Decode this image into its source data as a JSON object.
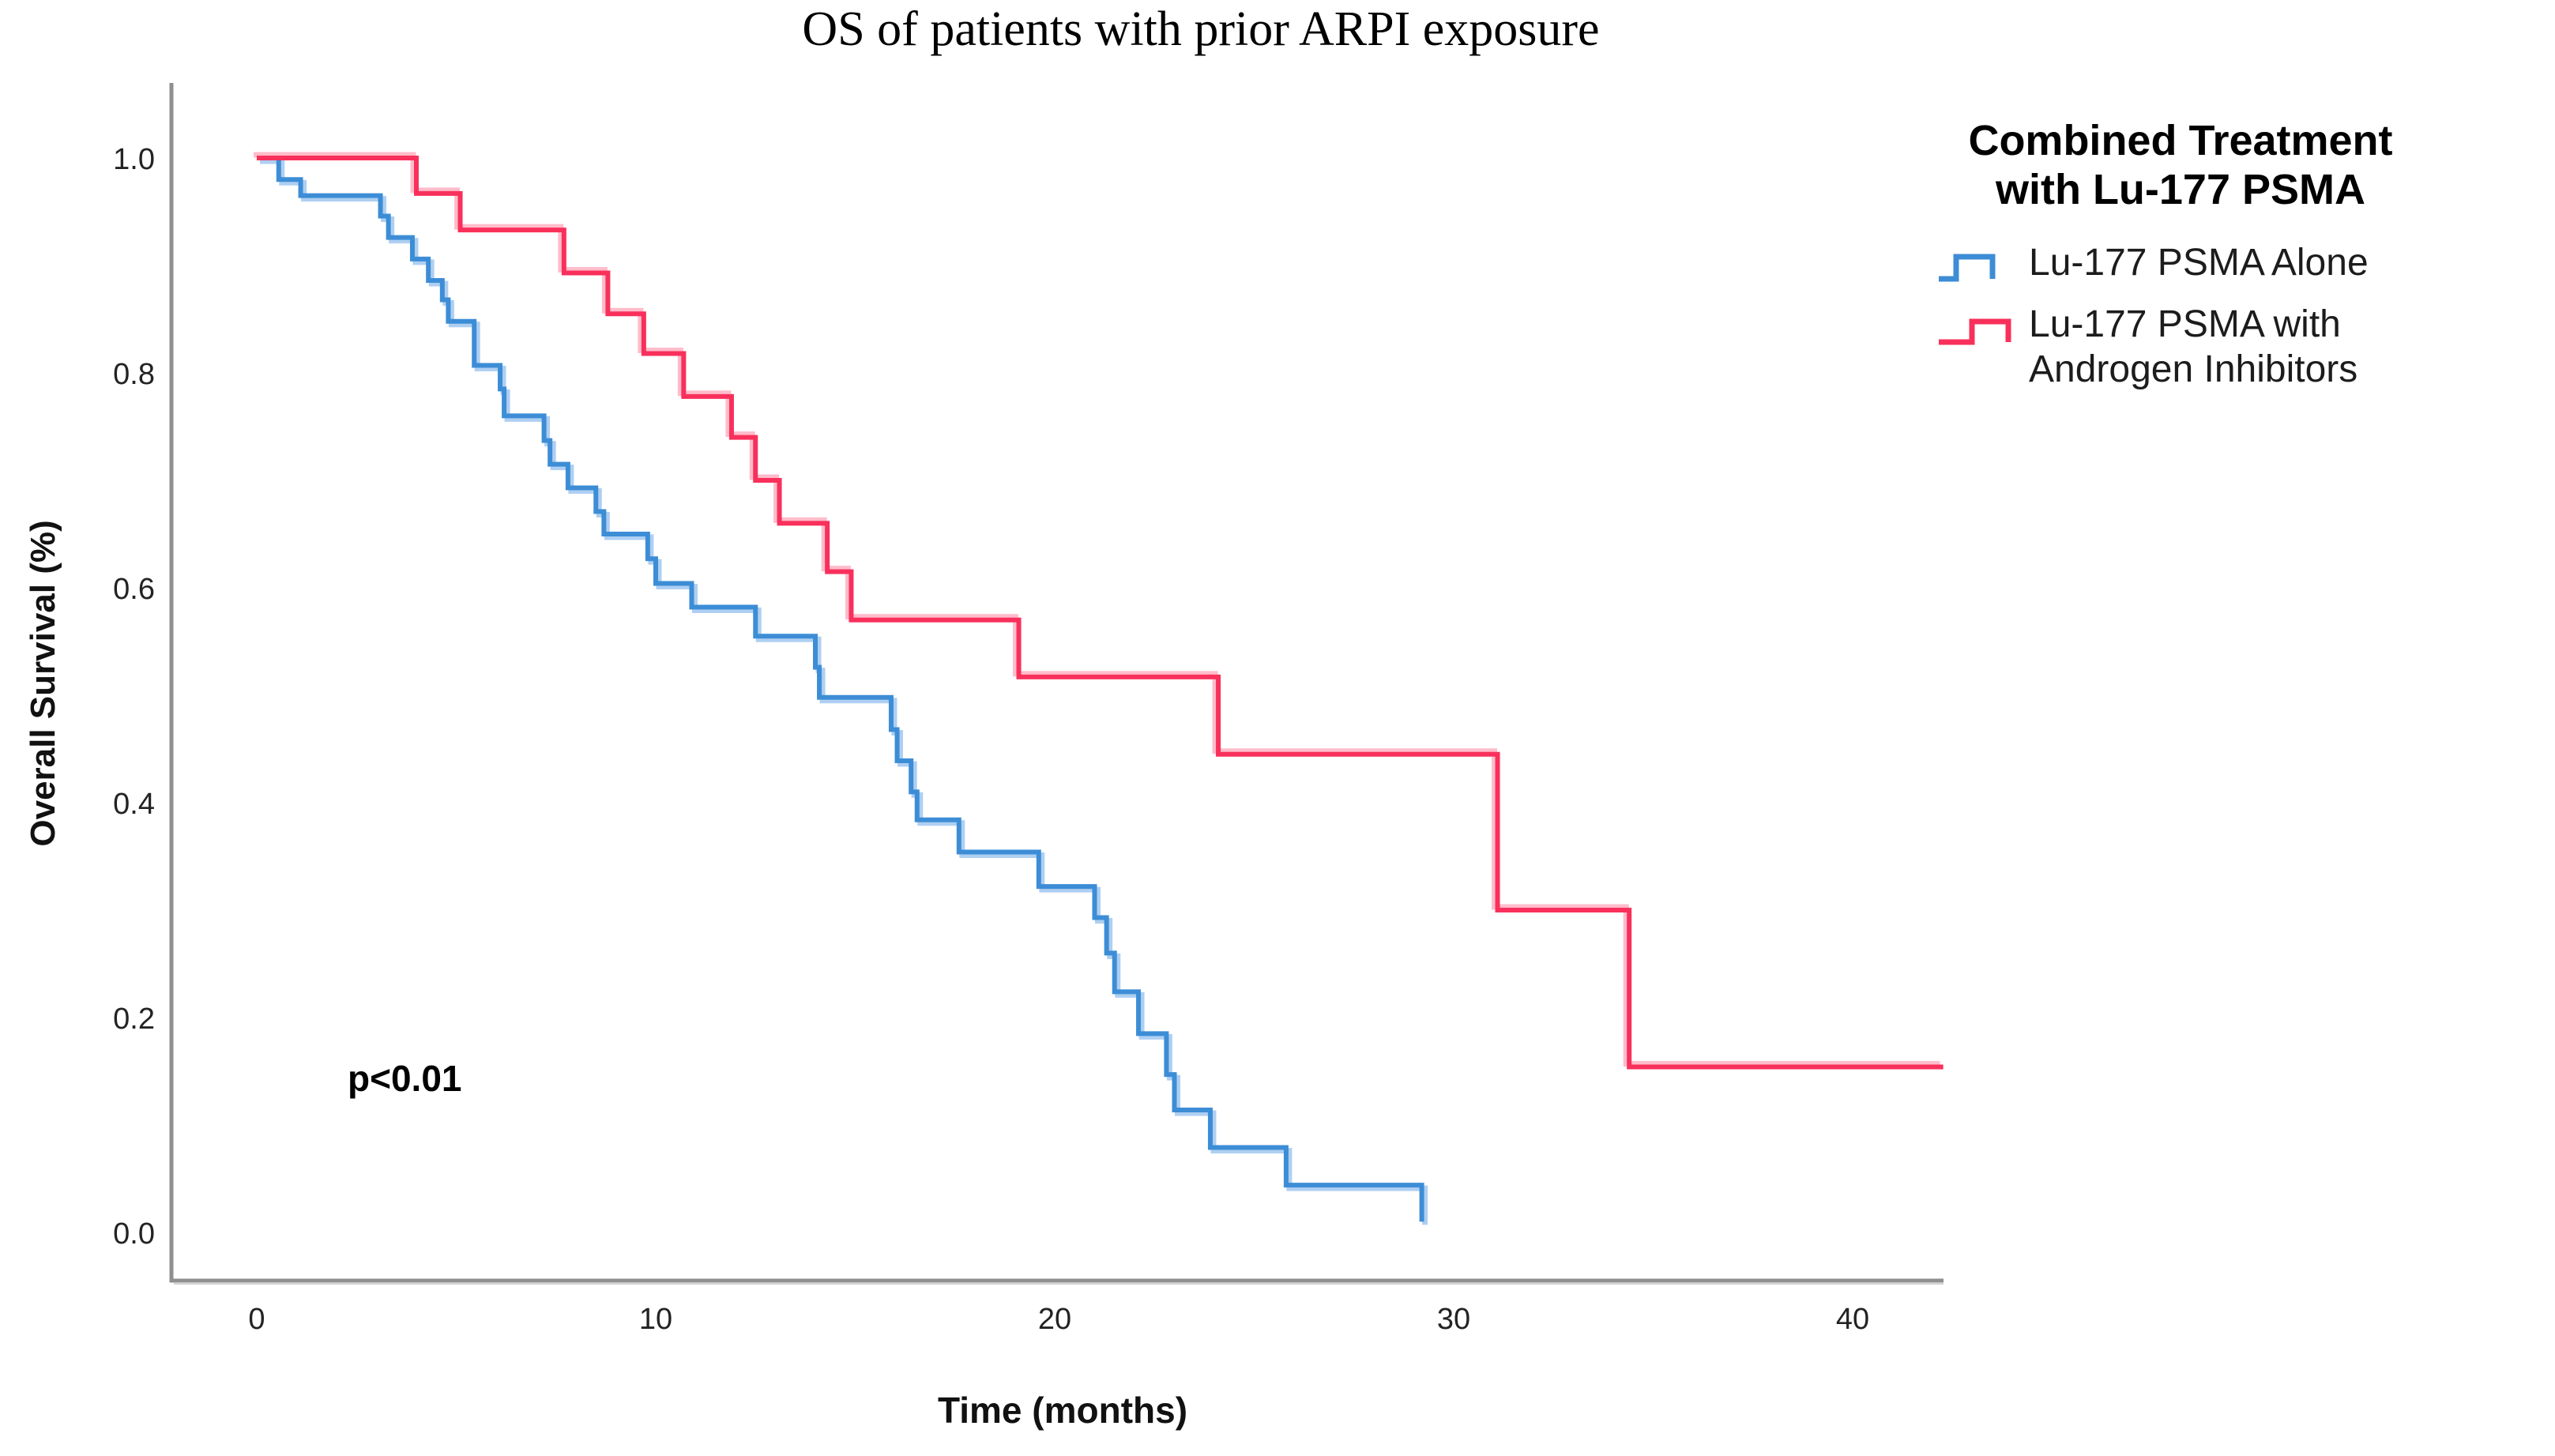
{
  "title": "OS of patients with prior ARPI exposure",
  "annotation": {
    "p_value": "p<0.01"
  },
  "legend": {
    "title": "Combined Treatment\nwith Lu-177 PSMA",
    "position": "right-top"
  },
  "chart_data": {
    "type": "line",
    "subtype": "kaplan-meier-step",
    "title": "OS of patients with prior ARPI exposure",
    "xlabel": "Time (months)",
    "ylabel": "Overall Survival (%)",
    "grid": false,
    "x_axis": {
      "ticks": [
        0,
        10,
        20,
        30,
        40
      ],
      "tick_labels": [
        "0",
        "10",
        "20",
        "30",
        "40"
      ],
      "range_drawn": [
        -2.1,
        42.3
      ]
    },
    "y_axis": {
      "ticks": [
        0.0,
        0.2,
        0.4,
        0.6,
        0.8,
        1.0
      ],
      "tick_labels": [
        "0.0",
        "0.2",
        "0.4",
        "0.6",
        "0.8",
        "1.0"
      ],
      "range_drawn": [
        -0.045,
        1.07
      ]
    },
    "axis_color": "#8f8f8f",
    "series": [
      {
        "name": "Lu-177 PSMA Alone",
        "color": "#3d8dd6",
        "halo_color": "#aecff2",
        "shadow_offset": [
          4,
          4
        ],
        "terminal": "drop",
        "points": [
          [
            0,
            1.0
          ],
          [
            0.55,
            0.98
          ],
          [
            1.1,
            0.965
          ],
          [
            3.1,
            0.946
          ],
          [
            3.3,
            0.926
          ],
          [
            3.9,
            0.906
          ],
          [
            4.3,
            0.886
          ],
          [
            4.65,
            0.868
          ],
          [
            4.8,
            0.848
          ],
          [
            5.45,
            0.807
          ],
          [
            6.1,
            0.785
          ],
          [
            6.2,
            0.76
          ],
          [
            7.2,
            0.737
          ],
          [
            7.35,
            0.715
          ],
          [
            7.8,
            0.693
          ],
          [
            8.5,
            0.671
          ],
          [
            8.7,
            0.65
          ],
          [
            9.8,
            0.627
          ],
          [
            10.0,
            0.604
          ],
          [
            10.9,
            0.582
          ],
          [
            12.5,
            0.555
          ],
          [
            14.0,
            0.526
          ],
          [
            14.1,
            0.498
          ],
          [
            15.9,
            0.468
          ],
          [
            16.05,
            0.439
          ],
          [
            16.4,
            0.41
          ],
          [
            16.55,
            0.384
          ],
          [
            17.6,
            0.354
          ],
          [
            19.6,
            0.322
          ],
          [
            21.0,
            0.293
          ],
          [
            21.3,
            0.26
          ],
          [
            21.5,
            0.224
          ],
          [
            22.1,
            0.185
          ],
          [
            22.8,
            0.147
          ],
          [
            23.0,
            0.114
          ],
          [
            23.9,
            0.079
          ],
          [
            25.8,
            0.044
          ],
          [
            29.2,
            0.01
          ]
        ]
      },
      {
        "name": "Lu-177 PSMA with Androgen Inhibitors",
        "color": "#f8305b",
        "halo_color": "#ffbccb",
        "shadow_offset": [
          -4,
          -4
        ],
        "terminal": "flat",
        "end_time": 42.27,
        "points": [
          [
            0,
            1.0
          ],
          [
            4.0,
            0.967
          ],
          [
            5.1,
            0.933
          ],
          [
            7.7,
            0.893
          ],
          [
            8.8,
            0.855
          ],
          [
            9.7,
            0.818
          ],
          [
            10.7,
            0.778
          ],
          [
            11.9,
            0.74
          ],
          [
            12.5,
            0.7
          ],
          [
            13.1,
            0.66
          ],
          [
            14.3,
            0.615
          ],
          [
            14.9,
            0.57
          ],
          [
            19.1,
            0.517
          ],
          [
            24.1,
            0.445
          ],
          [
            31.1,
            0.3
          ],
          [
            34.4,
            0.154
          ]
        ]
      }
    ]
  }
}
